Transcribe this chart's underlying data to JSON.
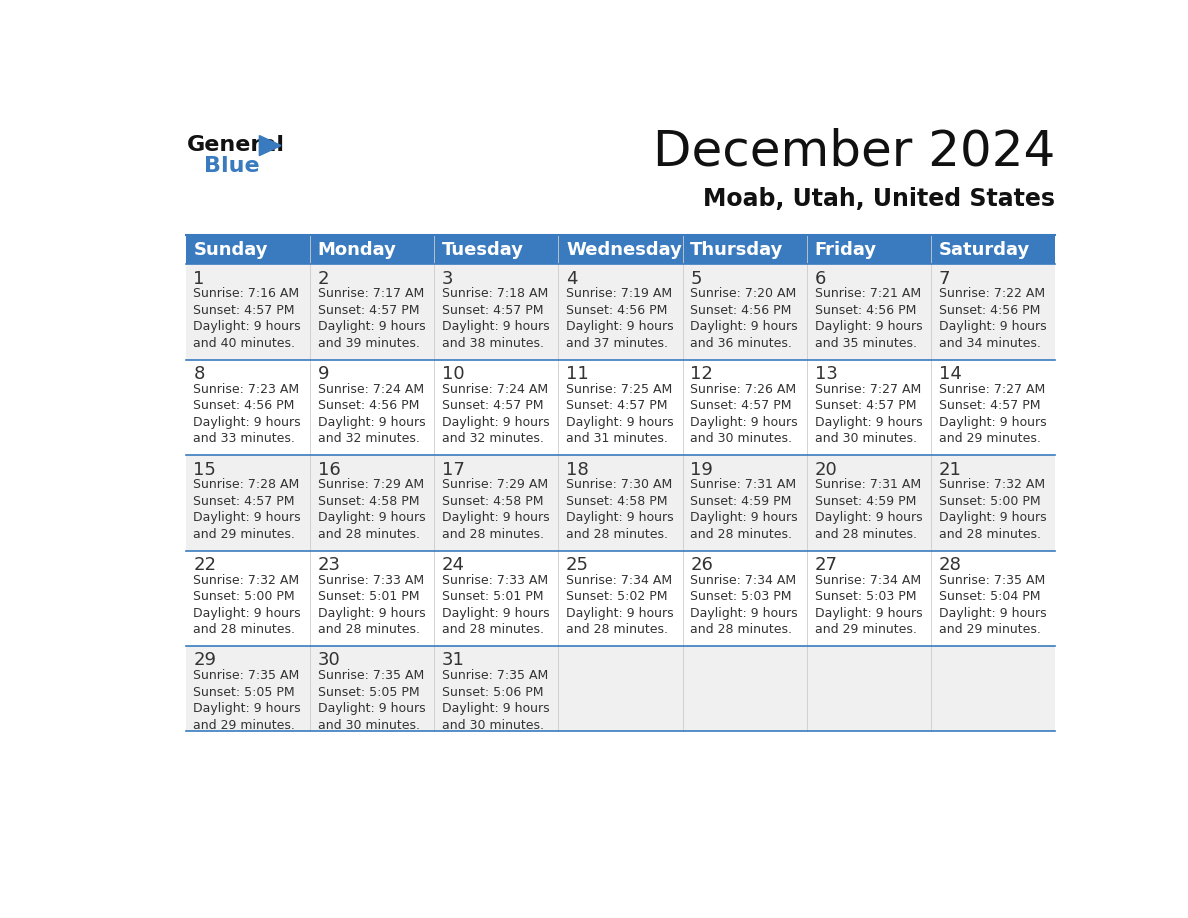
{
  "title": "December 2024",
  "subtitle": "Moab, Utah, United States",
  "header_color": "#3a7bbf",
  "header_text_color": "#ffffff",
  "bg_odd": "#f0f0f0",
  "bg_even": "#ffffff",
  "border_color": "#3a7bbf",
  "days_of_week": [
    "Sunday",
    "Monday",
    "Tuesday",
    "Wednesday",
    "Thursday",
    "Friday",
    "Saturday"
  ],
  "calendar_data": [
    [
      {
        "day": 1,
        "sunrise": "7:16 AM",
        "sunset": "4:57 PM",
        "daylight_hours": 9,
        "daylight_minutes": 40
      },
      {
        "day": 2,
        "sunrise": "7:17 AM",
        "sunset": "4:57 PM",
        "daylight_hours": 9,
        "daylight_minutes": 39
      },
      {
        "day": 3,
        "sunrise": "7:18 AM",
        "sunset": "4:57 PM",
        "daylight_hours": 9,
        "daylight_minutes": 38
      },
      {
        "day": 4,
        "sunrise": "7:19 AM",
        "sunset": "4:56 PM",
        "daylight_hours": 9,
        "daylight_minutes": 37
      },
      {
        "day": 5,
        "sunrise": "7:20 AM",
        "sunset": "4:56 PM",
        "daylight_hours": 9,
        "daylight_minutes": 36
      },
      {
        "day": 6,
        "sunrise": "7:21 AM",
        "sunset": "4:56 PM",
        "daylight_hours": 9,
        "daylight_minutes": 35
      },
      {
        "day": 7,
        "sunrise": "7:22 AM",
        "sunset": "4:56 PM",
        "daylight_hours": 9,
        "daylight_minutes": 34
      }
    ],
    [
      {
        "day": 8,
        "sunrise": "7:23 AM",
        "sunset": "4:56 PM",
        "daylight_hours": 9,
        "daylight_minutes": 33
      },
      {
        "day": 9,
        "sunrise": "7:24 AM",
        "sunset": "4:56 PM",
        "daylight_hours": 9,
        "daylight_minutes": 32
      },
      {
        "day": 10,
        "sunrise": "7:24 AM",
        "sunset": "4:57 PM",
        "daylight_hours": 9,
        "daylight_minutes": 32
      },
      {
        "day": 11,
        "sunrise": "7:25 AM",
        "sunset": "4:57 PM",
        "daylight_hours": 9,
        "daylight_minutes": 31
      },
      {
        "day": 12,
        "sunrise": "7:26 AM",
        "sunset": "4:57 PM",
        "daylight_hours": 9,
        "daylight_minutes": 30
      },
      {
        "day": 13,
        "sunrise": "7:27 AM",
        "sunset": "4:57 PM",
        "daylight_hours": 9,
        "daylight_minutes": 30
      },
      {
        "day": 14,
        "sunrise": "7:27 AM",
        "sunset": "4:57 PM",
        "daylight_hours": 9,
        "daylight_minutes": 29
      }
    ],
    [
      {
        "day": 15,
        "sunrise": "7:28 AM",
        "sunset": "4:57 PM",
        "daylight_hours": 9,
        "daylight_minutes": 29
      },
      {
        "day": 16,
        "sunrise": "7:29 AM",
        "sunset": "4:58 PM",
        "daylight_hours": 9,
        "daylight_minutes": 28
      },
      {
        "day": 17,
        "sunrise": "7:29 AM",
        "sunset": "4:58 PM",
        "daylight_hours": 9,
        "daylight_minutes": 28
      },
      {
        "day": 18,
        "sunrise": "7:30 AM",
        "sunset": "4:58 PM",
        "daylight_hours": 9,
        "daylight_minutes": 28
      },
      {
        "day": 19,
        "sunrise": "7:31 AM",
        "sunset": "4:59 PM",
        "daylight_hours": 9,
        "daylight_minutes": 28
      },
      {
        "day": 20,
        "sunrise": "7:31 AM",
        "sunset": "4:59 PM",
        "daylight_hours": 9,
        "daylight_minutes": 28
      },
      {
        "day": 21,
        "sunrise": "7:32 AM",
        "sunset": "5:00 PM",
        "daylight_hours": 9,
        "daylight_minutes": 28
      }
    ],
    [
      {
        "day": 22,
        "sunrise": "7:32 AM",
        "sunset": "5:00 PM",
        "daylight_hours": 9,
        "daylight_minutes": 28
      },
      {
        "day": 23,
        "sunrise": "7:33 AM",
        "sunset": "5:01 PM",
        "daylight_hours": 9,
        "daylight_minutes": 28
      },
      {
        "day": 24,
        "sunrise": "7:33 AM",
        "sunset": "5:01 PM",
        "daylight_hours": 9,
        "daylight_minutes": 28
      },
      {
        "day": 25,
        "sunrise": "7:34 AM",
        "sunset": "5:02 PM",
        "daylight_hours": 9,
        "daylight_minutes": 28
      },
      {
        "day": 26,
        "sunrise": "7:34 AM",
        "sunset": "5:03 PM",
        "daylight_hours": 9,
        "daylight_minutes": 28
      },
      {
        "day": 27,
        "sunrise": "7:34 AM",
        "sunset": "5:03 PM",
        "daylight_hours": 9,
        "daylight_minutes": 29
      },
      {
        "day": 28,
        "sunrise": "7:35 AM",
        "sunset": "5:04 PM",
        "daylight_hours": 9,
        "daylight_minutes": 29
      }
    ],
    [
      {
        "day": 29,
        "sunrise": "7:35 AM",
        "sunset": "5:05 PM",
        "daylight_hours": 9,
        "daylight_minutes": 29
      },
      {
        "day": 30,
        "sunrise": "7:35 AM",
        "sunset": "5:05 PM",
        "daylight_hours": 9,
        "daylight_minutes": 30
      },
      {
        "day": 31,
        "sunrise": "7:35 AM",
        "sunset": "5:06 PM",
        "daylight_hours": 9,
        "daylight_minutes": 30
      },
      null,
      null,
      null,
      null
    ]
  ],
  "text_color": "#333333",
  "num_rows": 5,
  "num_cols": 7,
  "fig_width": 11.88,
  "fig_height": 9.18,
  "title_fontsize": 36,
  "subtitle_fontsize": 17,
  "header_fontsize": 13,
  "day_num_fontsize": 13,
  "cell_text_fontsize": 9
}
